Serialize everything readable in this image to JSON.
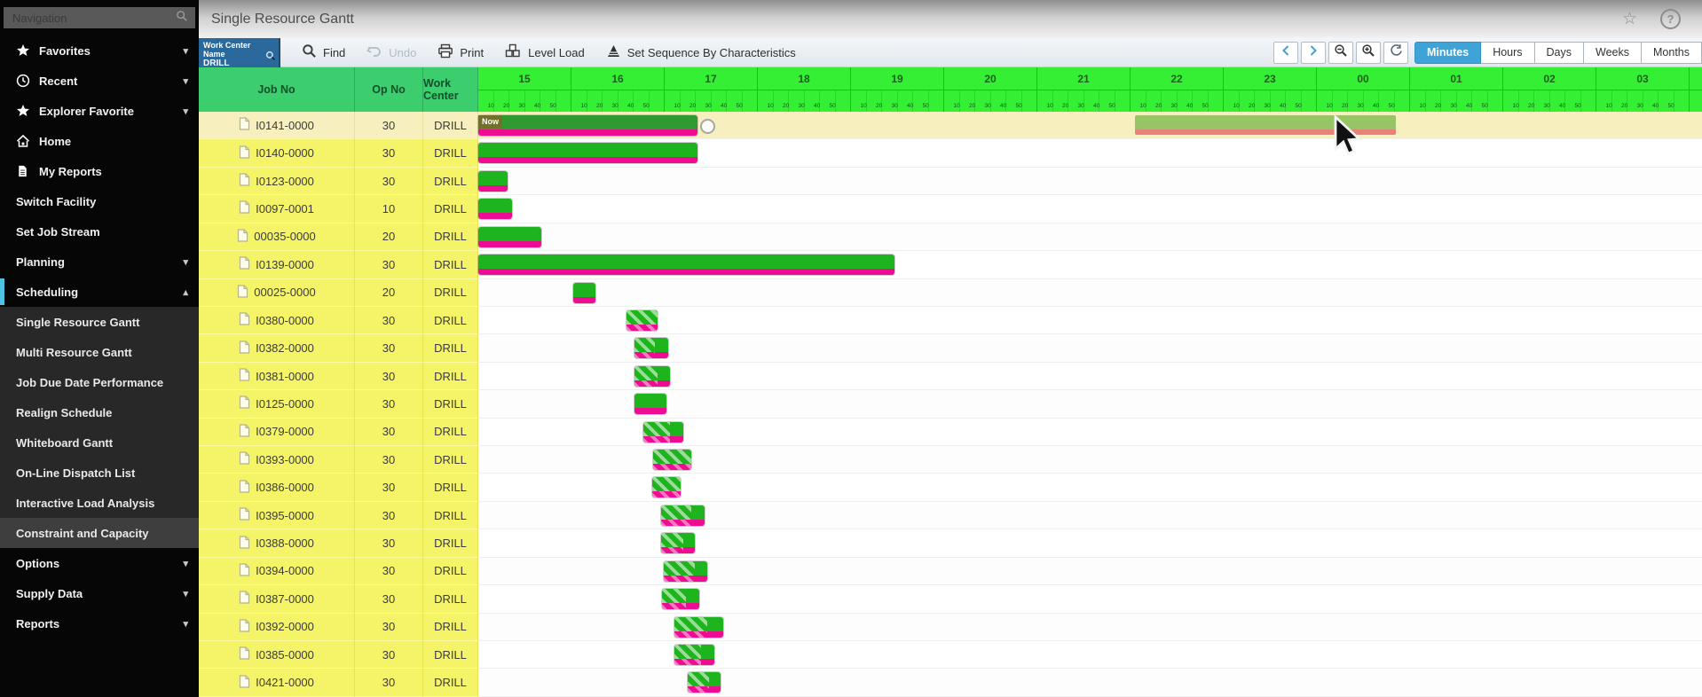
{
  "app": {
    "title": "Single Resource Gantt"
  },
  "titlebar_icons": {
    "favorite": "☆",
    "help": "?"
  },
  "glyphs": {
    "chevron_down": "▾",
    "chevron_up": "▴"
  },
  "sidebar": {
    "search_placeholder": "Navigation",
    "items": [
      {
        "label": "Favorites",
        "icon": "star",
        "chevron": "down"
      },
      {
        "label": "Recent",
        "icon": "clock",
        "chevron": "down"
      },
      {
        "label": "Explorer Favorite",
        "icon": "star",
        "chevron": "down"
      },
      {
        "label": "Home",
        "icon": "home"
      },
      {
        "label": "My Reports",
        "icon": "document"
      },
      {
        "label": "Switch Facility"
      },
      {
        "label": "Set Job Stream"
      },
      {
        "label": "Planning",
        "chevron": "down"
      },
      {
        "label": "Scheduling",
        "chevron": "up",
        "selected": true
      }
    ],
    "scheduling_submenu": {
      "items": [
        "Single Resource Gantt",
        "Multi Resource Gantt",
        "Job Due Date Performance",
        "Realign Schedule",
        "Whiteboard Gantt",
        "On-Line Dispatch List",
        "Interactive Load Analysis",
        "Constraint and Capacity"
      ],
      "active": "Constraint and Capacity"
    },
    "items_after": [
      {
        "label": "Options",
        "chevron": "down"
      },
      {
        "label": "Supply Data",
        "chevron": "down"
      },
      {
        "label": "Reports",
        "chevron": "down"
      }
    ]
  },
  "toolbar": {
    "work_center_filter": {
      "title": "Work Center Name",
      "value": "DRILL",
      "icon": "search"
    },
    "buttons": [
      {
        "label": "Find",
        "icon": "search",
        "enabled": true
      },
      {
        "label": "Undo",
        "icon": "undo",
        "enabled": false
      },
      {
        "label": "Print",
        "icon": "printer",
        "enabled": true
      },
      {
        "label": "Level Load",
        "icon": "level-load",
        "enabled": true
      },
      {
        "label": "Set Sequence By Characteristics",
        "icon": "pyramid",
        "enabled": true
      }
    ],
    "controls": [
      {
        "icon": "chevron-left"
      },
      {
        "icon": "chevron-right"
      },
      {
        "icon": "zoom-out"
      },
      {
        "icon": "zoom-in"
      },
      {
        "icon": "zoom-reset"
      }
    ],
    "time_units": [
      "Minutes",
      "Hours",
      "Days",
      "Weeks",
      "Months"
    ],
    "active_time_unit": "Minutes"
  },
  "table": {
    "columns": [
      "Job No",
      "Op No",
      "Work Center"
    ]
  },
  "gantt": {
    "timeline_start_hour": 15,
    "timeline_hours": [
      "15",
      "16",
      "17",
      "18",
      "19",
      "20",
      "21",
      "22",
      "23",
      "00",
      "01",
      "02",
      "03"
    ],
    "tick_labels": [
      "10",
      "20",
      "30",
      "40",
      "50"
    ],
    "now_label": "Now",
    "colors": {
      "bar_green": "#1db41d",
      "bar_green_dark": "#2f9a2f",
      "bar_magenta": "#ee0c92",
      "ghost_green": "#97c566",
      "ghost_salmon": "#e8827a",
      "header_green": "#35ef35",
      "table_header_green": "#3ccd6e",
      "row_yellow": "#f5f468",
      "row_highlight": "#f8efbe",
      "accent_blue": "#3ea3d7"
    },
    "rows": [
      {
        "job": "I0141-0000",
        "op": "30",
        "wc": "DRILL",
        "highlight": true,
        "now_tag": true,
        "handle_at": 17.45,
        "bars": [
          {
            "start": 15.0,
            "end": 17.35,
            "variant": "dark"
          }
        ],
        "ghost": {
          "start": 22.05,
          "end": 24.85
        }
      },
      {
        "job": "I0140-0000",
        "op": "30",
        "wc": "DRILL",
        "bars": [
          {
            "start": 15.0,
            "end": 17.35
          }
        ]
      },
      {
        "job": "I0123-0000",
        "op": "30",
        "wc": "DRILL",
        "bars": [
          {
            "start": 15.0,
            "end": 15.31
          }
        ]
      },
      {
        "job": "I0097-0001",
        "op": "10",
        "wc": "DRILL",
        "bars": [
          {
            "start": 15.0,
            "end": 15.36
          }
        ]
      },
      {
        "job": "00035-0000",
        "op": "20",
        "wc": "DRILL",
        "bars": [
          {
            "start": 15.0,
            "end": 15.68
          }
        ]
      },
      {
        "job": "I0139-0000",
        "op": "30",
        "wc": "DRILL",
        "bars": [
          {
            "start": 15.0,
            "end": 19.47
          }
        ]
      },
      {
        "job": "00025-0000",
        "op": "20",
        "wc": "DRILL",
        "bars": [
          {
            "start": 16.02,
            "end": 16.26
          }
        ]
      },
      {
        "job": "I0380-0000",
        "op": "30",
        "wc": "DRILL",
        "bars": [
          {
            "start": 16.59,
            "end": 16.92,
            "hatch_end": 16.92
          }
        ]
      },
      {
        "job": "I0382-0000",
        "op": "30",
        "wc": "DRILL",
        "bars": [
          {
            "start": 16.68,
            "end": 17.04,
            "hatch_end": 16.9
          }
        ]
      },
      {
        "job": "I0381-0000",
        "op": "30",
        "wc": "DRILL",
        "bars": [
          {
            "start": 16.68,
            "end": 17.06,
            "hatch_end": 16.92
          }
        ]
      },
      {
        "job": "I0125-0000",
        "op": "30",
        "wc": "DRILL",
        "bars": [
          {
            "start": 16.68,
            "end": 17.02
          }
        ]
      },
      {
        "job": "I0379-0000",
        "op": "30",
        "wc": "DRILL",
        "bars": [
          {
            "start": 16.77,
            "end": 17.2,
            "hatch_end": 17.06
          }
        ]
      },
      {
        "job": "I0393-0000",
        "op": "30",
        "wc": "DRILL",
        "bars": [
          {
            "start": 16.88,
            "end": 17.29,
            "hatch_end": 17.29
          }
        ]
      },
      {
        "job": "I0386-0000",
        "op": "30",
        "wc": "DRILL",
        "bars": [
          {
            "start": 16.87,
            "end": 17.17,
            "hatch_end": 17.17
          }
        ]
      },
      {
        "job": "I0395-0000",
        "op": "30",
        "wc": "DRILL",
        "bars": [
          {
            "start": 16.96,
            "end": 17.43,
            "hatch_end": 17.29
          }
        ]
      },
      {
        "job": "I0388-0000",
        "op": "30",
        "wc": "DRILL",
        "bars": [
          {
            "start": 16.96,
            "end": 17.32,
            "hatch_end": 17.2
          }
        ]
      },
      {
        "job": "I0394-0000",
        "op": "30",
        "wc": "DRILL",
        "bars": [
          {
            "start": 16.99,
            "end": 17.46,
            "hatch_end": 17.32
          }
        ]
      },
      {
        "job": "I0387-0000",
        "op": "30",
        "wc": "DRILL",
        "bars": [
          {
            "start": 16.97,
            "end": 17.37,
            "hatch_end": 17.23
          }
        ]
      },
      {
        "job": "I0392-0000",
        "op": "30",
        "wc": "DRILL",
        "bars": [
          {
            "start": 17.1,
            "end": 17.63,
            "hatch_end": 17.46
          }
        ]
      },
      {
        "job": "I0385-0000",
        "op": "30",
        "wc": "DRILL",
        "bars": [
          {
            "start": 17.1,
            "end": 17.53,
            "hatch_end": 17.39
          }
        ]
      },
      {
        "job": "I0421-0000",
        "op": "30",
        "wc": "DRILL",
        "bars": [
          {
            "start": 17.25,
            "end": 17.6,
            "hatch_end": 17.48
          }
        ]
      }
    ]
  }
}
